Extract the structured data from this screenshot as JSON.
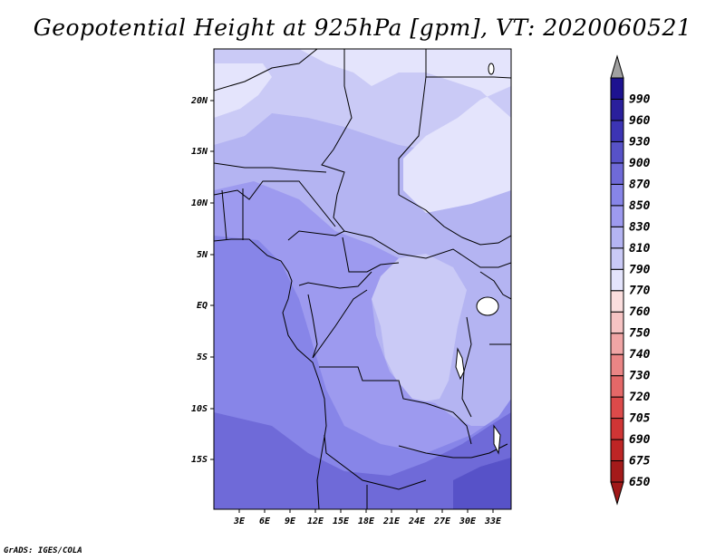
{
  "title": "Geopotential Height at 925hPa [gpm], VT: 2020060521",
  "credit": "GrADS: IGES/COLA",
  "map": {
    "lon_labels": [
      "3E",
      "6E",
      "9E",
      "12E",
      "15E",
      "18E",
      "21E",
      "24E",
      "27E",
      "30E",
      "33E"
    ],
    "lat_labels": [
      "20N",
      "15N",
      "10N",
      "5N",
      "EQ",
      "5S",
      "10S",
      "15S"
    ],
    "field_levels": {
      "north_band": 790,
      "sahel": 810,
      "central": 830,
      "congo_basin": 810,
      "coast_south": 850,
      "far_south": 870,
      "southeast_corner": 900
    }
  },
  "colorbar": {
    "levels": [
      "650",
      "675",
      "690",
      "705",
      "720",
      "730",
      "740",
      "750",
      "760",
      "770",
      "790",
      "810",
      "830",
      "850",
      "870",
      "900",
      "930",
      "960",
      "990"
    ],
    "colors": {
      "top_arrow": "#a0a0a0",
      "bottom_arrow": "#a01818",
      "reds": [
        "#a41a1a",
        "#be2525",
        "#d03535",
        "#dc4a4a",
        "#e46868",
        "#ea8585",
        "#f0a5a5",
        "#f6c3c3",
        "#fbdede"
      ],
      "blues": [
        "#e4e4fc",
        "#cacaf6",
        "#b4b4f2",
        "#9d9aef",
        "#8785e8",
        "#6f6ad8",
        "#5752c8",
        "#3c34b4",
        "#2a1f9c",
        "#1d1290"
      ]
    }
  }
}
